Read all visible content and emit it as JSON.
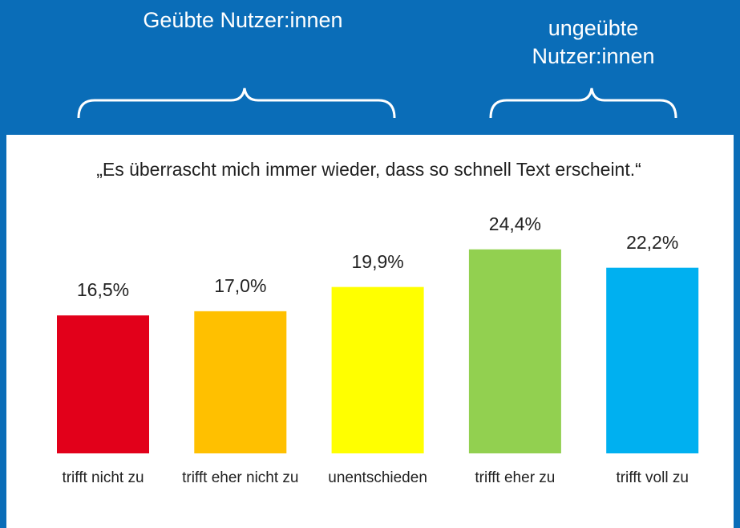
{
  "chart_data": {
    "type": "bar",
    "annotations": [
      "Geübte Nutzer:innen",
      "ungeübte Nutzer:innen"
    ],
    "title": "„Es überrascht mich immer wieder, dass so schnell Text erscheint.“",
    "categories": [
      "trifft nicht zu",
      "trifft eher nicht zu",
      "unentschieden",
      "trifft eher zu",
      "trifft voll zu"
    ],
    "values": [
      16.5,
      17.0,
      19.9,
      24.4,
      22.2
    ],
    "value_labels": [
      "16,5%",
      "17,0%",
      "19,9%",
      "24,4%",
      "22,2%"
    ],
    "colors": [
      "#e2001a",
      "#ffc000",
      "#ffff00",
      "#92d050",
      "#00b0f0"
    ]
  }
}
